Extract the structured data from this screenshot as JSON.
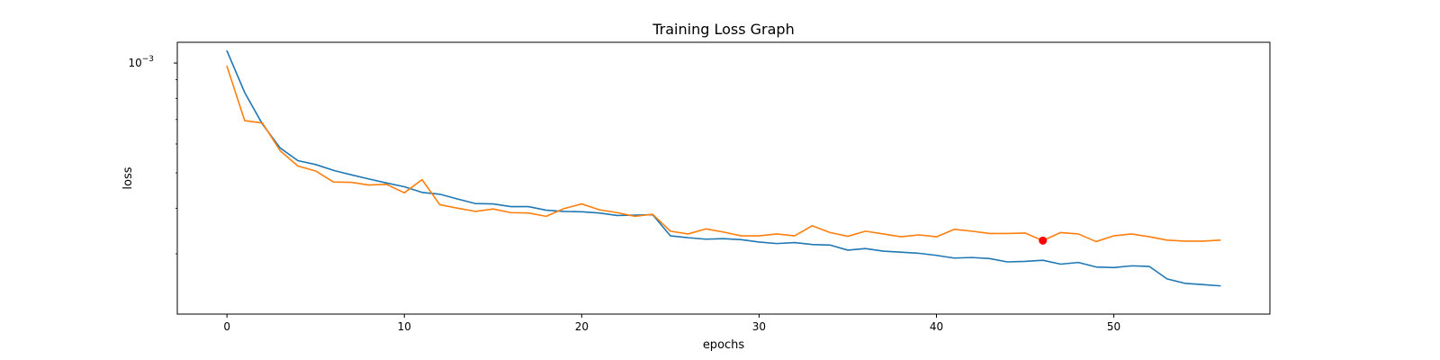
{
  "chart_data": {
    "type": "line",
    "title": "Training Loss Graph",
    "xlabel": "epochs",
    "ylabel": "loss",
    "yscale": "log",
    "xlim": [
      -2.8,
      58.8
    ],
    "ylim": [
      0.000205,
      0.00114
    ],
    "xticks": [
      0,
      10,
      20,
      30,
      40,
      50
    ],
    "yticks": [
      {
        "value": 0.001,
        "label_base": "10",
        "label_exp": "−3"
      }
    ],
    "grid": false,
    "legend": "none",
    "series": [
      {
        "color": "#1f77b4",
        "x": [
          0,
          1,
          2,
          3,
          4,
          5,
          6,
          7,
          8,
          9,
          10,
          11,
          12,
          13,
          14,
          15,
          16,
          17,
          18,
          19,
          20,
          21,
          22,
          23,
          24,
          25,
          26,
          27,
          28,
          29,
          30,
          31,
          32,
          33,
          34,
          35,
          36,
          37,
          38,
          39,
          40,
          41,
          42,
          43,
          44,
          45,
          46,
          47,
          48,
          49,
          50,
          51,
          52,
          53,
          54,
          55,
          56
        ],
        "y": [
          0.00108,
          0.00083,
          0.00068,
          0.000585,
          0.00054,
          0.000527,
          0.000508,
          0.000494,
          0.000481,
          0.000469,
          0.000458,
          0.000442,
          0.000437,
          0.000424,
          0.000412,
          0.000411,
          0.000404,
          0.000404,
          0.000395,
          0.000392,
          0.000391,
          0.000388,
          0.000382,
          0.000383,
          0.000384,
          0.000336,
          0.000332,
          0.000329,
          0.00033,
          0.000328,
          0.000323,
          0.00032,
          0.000322,
          0.000318,
          0.000317,
          0.000307,
          0.00031,
          0.000305,
          0.000303,
          0.000301,
          0.000297,
          0.000292,
          0.000293,
          0.000291,
          0.000285,
          0.000286,
          0.000288,
          0.000281,
          0.000284,
          0.000276,
          0.000275,
          0.000278,
          0.000277,
          0.000256,
          0.000249,
          0.000247,
          0.000245
        ]
      },
      {
        "color": "#ff7f0e",
        "x": [
          0,
          1,
          2,
          3,
          4,
          5,
          6,
          7,
          8,
          9,
          10,
          11,
          12,
          13,
          14,
          15,
          16,
          17,
          18,
          19,
          20,
          21,
          22,
          23,
          24,
          25,
          26,
          27,
          28,
          29,
          30,
          31,
          32,
          33,
          34,
          35,
          36,
          37,
          38,
          39,
          40,
          41,
          42,
          43,
          44,
          45,
          46,
          47,
          48,
          49,
          50,
          51,
          52,
          53,
          54,
          55,
          56
        ],
        "y": [
          0.00098,
          0.000695,
          0.000685,
          0.000575,
          0.000522,
          0.000506,
          0.000472,
          0.000471,
          0.000463,
          0.000465,
          0.000441,
          0.000479,
          0.000409,
          0.0004,
          0.000392,
          0.000398,
          0.000389,
          0.000388,
          0.00038,
          0.000399,
          0.000411,
          0.000396,
          0.000389,
          0.00038,
          0.000385,
          0.000346,
          0.00034,
          0.000351,
          0.000344,
          0.000336,
          0.000336,
          0.00034,
          0.000336,
          0.000358,
          0.000343,
          0.000335,
          0.000346,
          0.00034,
          0.000334,
          0.000338,
          0.000334,
          0.00035,
          0.000346,
          0.000341,
          0.000341,
          0.000342,
          0.000326,
          0.000343,
          0.00034,
          0.000324,
          0.000336,
          0.00034,
          0.000334,
          0.000327,
          0.000325,
          0.000325,
          0.000327
        ]
      }
    ],
    "annotations": [
      {
        "type": "marker",
        "x": 46,
        "y": 0.000326,
        "color": "#ff0000"
      }
    ]
  }
}
